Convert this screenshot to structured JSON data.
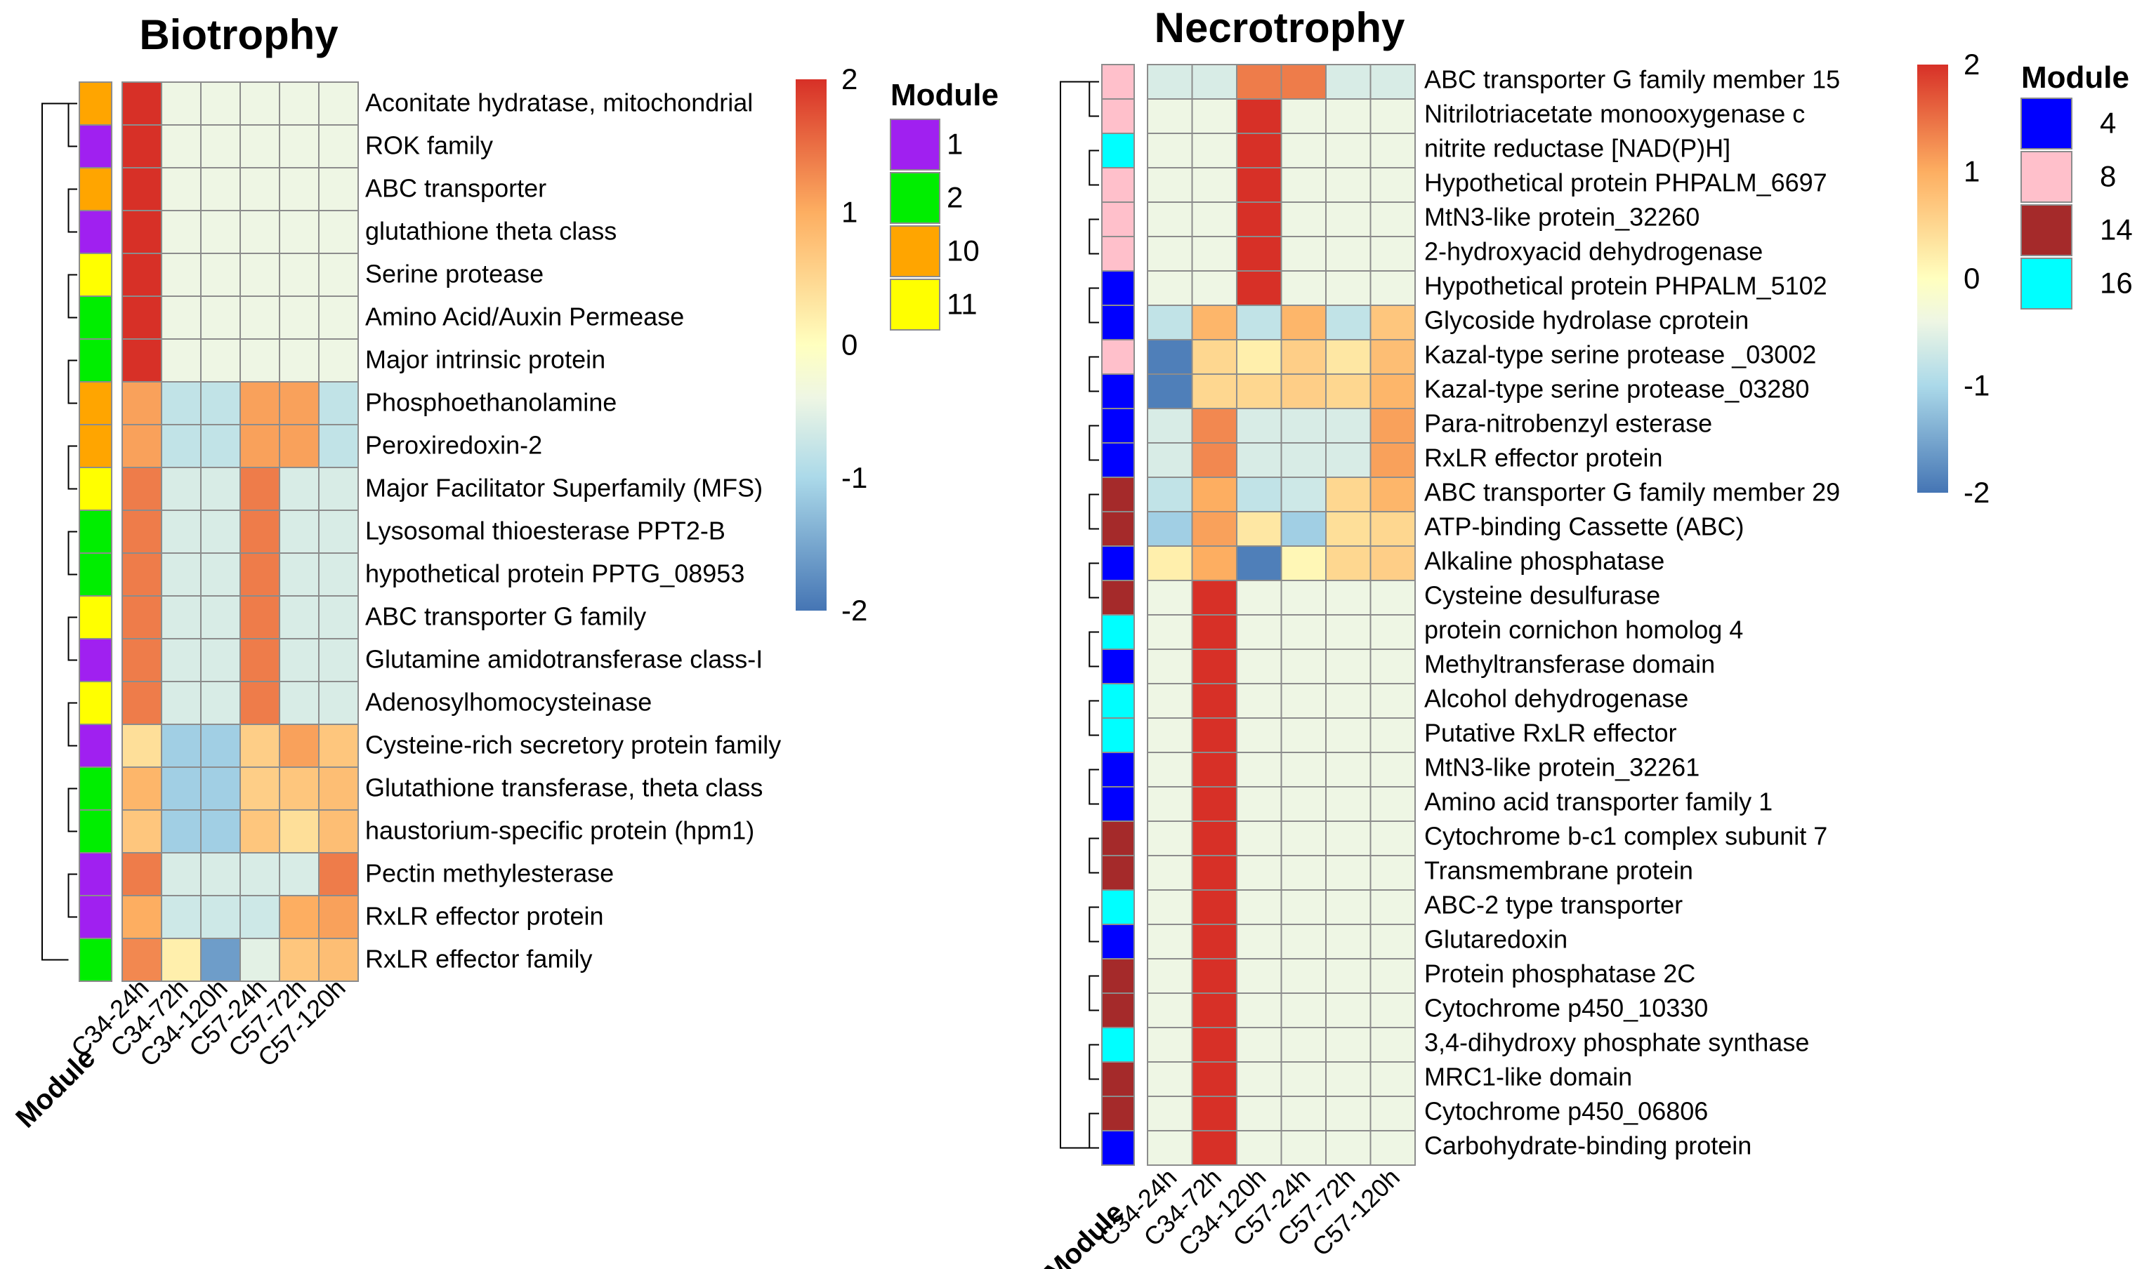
{
  "chart_data": [
    {
      "type": "heatmap",
      "title": "Biotrophy",
      "module_axis_label": "Module",
      "columns": [
        "C34-24h",
        "C34-72h",
        "C34-120h",
        "C57-24h",
        "C57-72h",
        "C57-120h"
      ],
      "rows": [
        "Aconitate hydratase, mitochondrial",
        "ROK family",
        "ABC transporter",
        "glutathione theta class",
        "Serine protease",
        "Amino Acid/Auxin Permease",
        "Major intrinsic protein",
        "Phosphoethanolamine",
        "Peroxiredoxin-2",
        "Major Facilitator Superfamily (MFS)",
        "Lysosomal thioesterase PPT2-B",
        "hypothetical protein PPTG_08953",
        "ABC transporter G family",
        "Glutamine amidotransferase class-I",
        "Adenosylhomocysteinase",
        "Cysteine-rich secretory protein family",
        "Glutathione transferase, theta class",
        "haustorium-specific  protein (hpm1)",
        "Pectin methylesterase",
        "RxLR effector protein",
        "RxLR effector family"
      ],
      "modules": [
        10,
        1,
        10,
        1,
        11,
        2,
        2,
        10,
        10,
        11,
        2,
        2,
        11,
        1,
        11,
        1,
        2,
        2,
        1,
        1,
        2
      ],
      "values": [
        [
          2.0,
          -0.4,
          -0.4,
          -0.4,
          -0.4,
          -0.4
        ],
        [
          2.0,
          -0.4,
          -0.4,
          -0.4,
          -0.4,
          -0.4
        ],
        [
          2.0,
          -0.4,
          -0.4,
          -0.4,
          -0.4,
          -0.4
        ],
        [
          2.0,
          -0.4,
          -0.4,
          -0.4,
          -0.4,
          -0.4
        ],
        [
          2.0,
          -0.4,
          -0.4,
          -0.4,
          -0.4,
          -0.4
        ],
        [
          2.0,
          -0.4,
          -0.4,
          -0.4,
          -0.4,
          -0.4
        ],
        [
          2.0,
          -0.4,
          -0.4,
          -0.4,
          -0.4,
          -0.4
        ],
        [
          1.1,
          -0.8,
          -0.8,
          1.1,
          1.1,
          -0.8
        ],
        [
          1.1,
          -0.8,
          -0.8,
          1.1,
          1.1,
          -0.8
        ],
        [
          1.4,
          -0.6,
          -0.6,
          1.4,
          -0.6,
          -0.6
        ],
        [
          1.4,
          -0.6,
          -0.6,
          1.4,
          -0.6,
          -0.6
        ],
        [
          1.4,
          -0.6,
          -0.6,
          1.4,
          -0.6,
          -0.6
        ],
        [
          1.4,
          -0.6,
          -0.6,
          1.4,
          -0.6,
          -0.6
        ],
        [
          1.4,
          -0.6,
          -0.6,
          1.4,
          -0.6,
          -0.6
        ],
        [
          1.4,
          -0.6,
          -0.6,
          1.4,
          -0.6,
          -0.6
        ],
        [
          0.4,
          -1.1,
          -1.1,
          0.6,
          1.1,
          0.7
        ],
        [
          0.9,
          -1.1,
          -1.1,
          0.6,
          0.7,
          0.8
        ],
        [
          0.7,
          -1.1,
          -1.1,
          0.7,
          0.4,
          0.8
        ],
        [
          1.4,
          -0.6,
          -0.6,
          -0.6,
          -0.6,
          1.4
        ],
        [
          1.0,
          -0.7,
          -0.7,
          -0.7,
          1.0,
          1.1
        ],
        [
          1.3,
          0.2,
          -1.6,
          -0.5,
          0.7,
          0.8
        ]
      ],
      "colorbar": {
        "min": -2,
        "max": 2,
        "ticks": [
          2,
          1,
          0,
          -1,
          -2
        ]
      },
      "legend": {
        "title": "Module",
        "items": [
          {
            "label": "1",
            "color": "#A020F0"
          },
          {
            "label": "2",
            "color": "#00EE00"
          },
          {
            "label": "10",
            "color": "#FFA500"
          },
          {
            "label": "11",
            "color": "#FFFF00"
          }
        ]
      }
    },
    {
      "type": "heatmap",
      "title": "Necrotrophy",
      "module_axis_label": "Module",
      "columns": [
        "C34-24h",
        "C34-72h",
        "C34-120h",
        "C57-24h",
        "C57-72h",
        "C57-120h"
      ],
      "rows": [
        "ABC transporter G family member 15",
        "Nitrilotriacetate monooxygenase c",
        "nitrite reductase [NAD(P)H]",
        "Hypothetical protein PHPALM_6697",
        "MtN3-like protein_32260",
        "2-hydroxyacid dehydrogenase",
        "Hypothetical protein PHPALM_5102",
        "Glycoside hydrolase cprotein",
        "Kazal-type serine protease _03002",
        "Kazal-type serine protease_03280",
        "Para-nitrobenzyl esterase",
        "RxLR effector protein",
        "ABC transporter G family member 29",
        "ATP-binding Cassette (ABC)",
        "Alkaline phosphatase",
        "Cysteine desulfurase",
        "protein cornichon homolog 4",
        "Methyltransferase domain",
        "Alcohol dehydrogenase",
        "Putative RxLR effector",
        "MtN3-like protein_32261",
        "Amino acid  transporter family 1",
        "Cytochrome b-c1 complex subunit 7",
        "Transmembrane protein",
        "ABC-2 type transporter",
        "Glutaredoxin",
        "Protein phosphatase 2C",
        "Cytochrome p450_10330",
        "3,4-dihydroxy phosphate synthase",
        "MRC1-like domain",
        "Cytochrome p450_06806",
        "Carbohydrate-binding protein"
      ],
      "modules": [
        8,
        8,
        16,
        8,
        8,
        8,
        4,
        4,
        8,
        4,
        4,
        4,
        14,
        14,
        4,
        14,
        16,
        4,
        16,
        16,
        4,
        4,
        14,
        14,
        16,
        4,
        14,
        14,
        16,
        14,
        14,
        4
      ],
      "values": [
        [
          -0.6,
          -0.6,
          1.4,
          1.4,
          -0.6,
          -0.6
        ],
        [
          -0.4,
          -0.4,
          2.0,
          -0.4,
          -0.4,
          -0.4
        ],
        [
          -0.4,
          -0.4,
          2.0,
          -0.4,
          -0.4,
          -0.4
        ],
        [
          -0.4,
          -0.4,
          2.0,
          -0.4,
          -0.4,
          -0.4
        ],
        [
          -0.4,
          -0.4,
          2.0,
          -0.4,
          -0.4,
          -0.4
        ],
        [
          -0.4,
          -0.4,
          2.0,
          -0.4,
          -0.4,
          -0.4
        ],
        [
          -0.4,
          -0.4,
          2.0,
          -0.4,
          -0.4,
          -0.4
        ],
        [
          -0.8,
          0.9,
          -0.8,
          0.9,
          -0.8,
          0.7
        ],
        [
          -1.9,
          0.5,
          0.2,
          0.6,
          0.3,
          0.8
        ],
        [
          -1.9,
          0.5,
          0.5,
          0.6,
          0.5,
          0.9
        ],
        [
          -0.6,
          1.3,
          -0.6,
          -0.6,
          -0.6,
          1.1
        ],
        [
          -0.6,
          1.3,
          -0.6,
          -0.6,
          -0.6,
          1.1
        ],
        [
          -0.8,
          1.0,
          -0.8,
          -0.7,
          0.5,
          0.9
        ],
        [
          -1.1,
          1.1,
          0.3,
          -1.1,
          0.4,
          0.5
        ],
        [
          0.2,
          1.0,
          -1.9,
          0.1,
          0.5,
          0.6
        ],
        [
          -0.4,
          2.0,
          -0.4,
          -0.4,
          -0.4,
          -0.4
        ],
        [
          -0.4,
          2.0,
          -0.4,
          -0.4,
          -0.4,
          -0.4
        ],
        [
          -0.4,
          2.0,
          -0.4,
          -0.4,
          -0.4,
          -0.4
        ],
        [
          -0.4,
          2.0,
          -0.4,
          -0.4,
          -0.4,
          -0.4
        ],
        [
          -0.4,
          2.0,
          -0.4,
          -0.4,
          -0.4,
          -0.4
        ],
        [
          -0.4,
          2.0,
          -0.4,
          -0.4,
          -0.4,
          -0.4
        ],
        [
          -0.4,
          2.0,
          -0.4,
          -0.4,
          -0.4,
          -0.4
        ],
        [
          -0.4,
          2.0,
          -0.4,
          -0.4,
          -0.4,
          -0.4
        ],
        [
          -0.4,
          2.0,
          -0.4,
          -0.4,
          -0.4,
          -0.4
        ],
        [
          -0.4,
          2.0,
          -0.4,
          -0.4,
          -0.4,
          -0.4
        ],
        [
          -0.4,
          2.0,
          -0.4,
          -0.4,
          -0.4,
          -0.4
        ],
        [
          -0.4,
          2.0,
          -0.4,
          -0.4,
          -0.4,
          -0.4
        ],
        [
          -0.4,
          2.0,
          -0.4,
          -0.4,
          -0.4,
          -0.4
        ],
        [
          -0.4,
          2.0,
          -0.4,
          -0.4,
          -0.4,
          -0.4
        ],
        [
          -0.4,
          2.0,
          -0.4,
          -0.4,
          -0.4,
          -0.4
        ],
        [
          -0.4,
          2.0,
          -0.4,
          -0.4,
          -0.4,
          -0.4
        ],
        [
          -0.4,
          2.0,
          -0.4,
          -0.4,
          -0.4,
          -0.4
        ]
      ],
      "colorbar": {
        "min": -2,
        "max": 2,
        "ticks": [
          2,
          1,
          0,
          -1,
          -2
        ]
      },
      "legend": {
        "title": "Module",
        "items": [
          {
            "label": "4",
            "color": "#0000FF"
          },
          {
            "label": "8",
            "color": "#FFC0CB"
          },
          {
            "label": "14",
            "color": "#A52A2A"
          },
          {
            "label": "16",
            "color": "#00FFFF"
          }
        ]
      }
    }
  ]
}
